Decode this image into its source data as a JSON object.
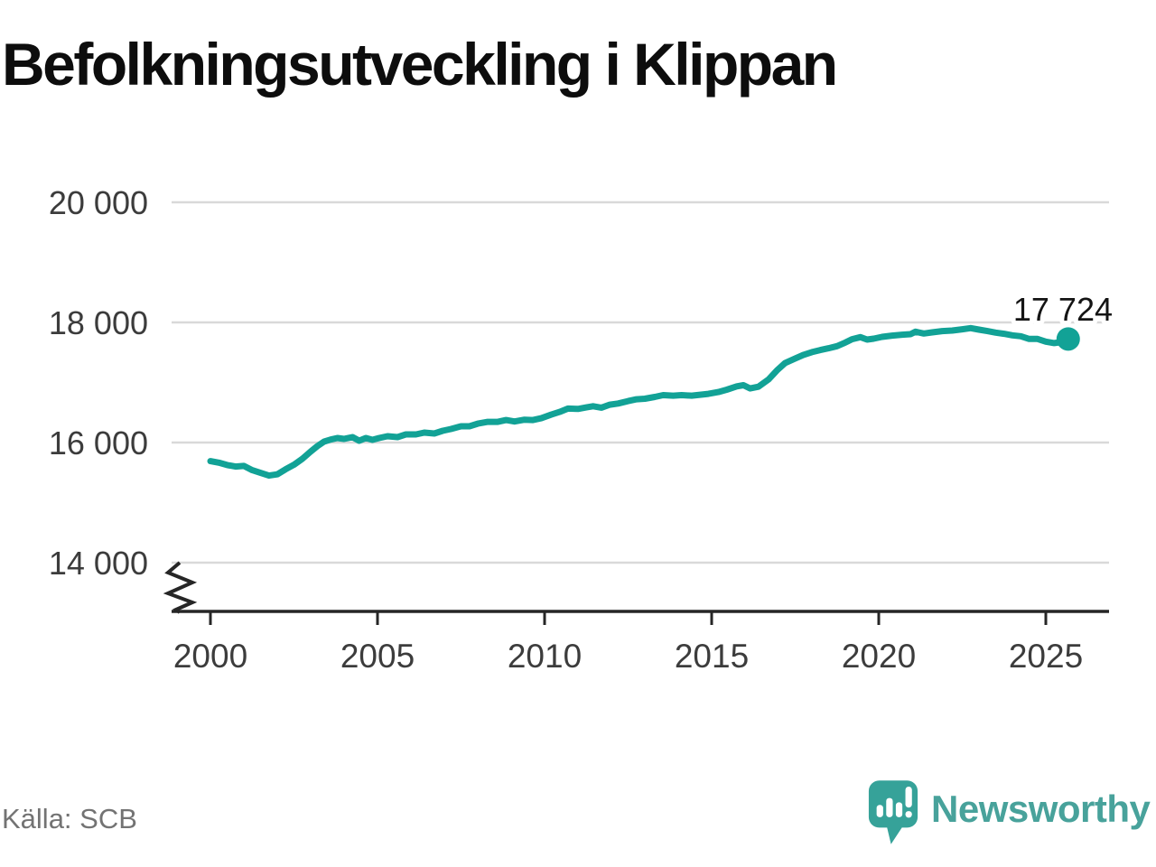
{
  "title": "Befolkningsutveckling i Klippan",
  "source_note": "Källa: SCB",
  "branding": {
    "name": "Newsworthy",
    "icon": "newsworthy-speech-bubble-bars-icon"
  },
  "colors": {
    "line": "#12a296",
    "grid": "#d9d9d9",
    "axis": "#262626",
    "tick_label": "#3c3c3c",
    "title": "#0d0d0d",
    "source": "#737373",
    "logo": "#48a29b",
    "end_label": "#141414",
    "background": "#ffffff"
  },
  "chart_data": {
    "type": "line",
    "title": "Befolkningsutveckling i Klippan",
    "xlabel": "",
    "ylabel": "",
    "grid": "horizontal",
    "axis_break": true,
    "xlim": [
      1998.85,
      2026.9
    ],
    "ylim": [
      14000,
      20000
    ],
    "x_ticks": [
      2000,
      2005,
      2010,
      2015,
      2020,
      2025
    ],
    "y_ticks": [
      {
        "value": 14000,
        "label": "14 000"
      },
      {
        "value": 16000,
        "label": "16 000"
      },
      {
        "value": 18000,
        "label": "18 000"
      },
      {
        "value": 20000,
        "label": "20 000"
      }
    ],
    "end_label": {
      "text": "17 724",
      "x": 2025.67,
      "y": 17724
    },
    "series": [
      {
        "name": "Befolkning i Klippan",
        "points": [
          [
            2000.0,
            15690
          ],
          [
            2000.25,
            15665
          ],
          [
            2000.5,
            15625
          ],
          [
            2000.75,
            15600
          ],
          [
            2001.0,
            15610
          ],
          [
            2001.25,
            15540
          ],
          [
            2001.5,
            15495
          ],
          [
            2001.75,
            15450
          ],
          [
            2002.0,
            15470
          ],
          [
            2002.25,
            15555
          ],
          [
            2002.5,
            15630
          ],
          [
            2002.75,
            15730
          ],
          [
            2003.0,
            15850
          ],
          [
            2003.2,
            15940
          ],
          [
            2003.4,
            16015
          ],
          [
            2003.6,
            16050
          ],
          [
            2003.8,
            16075
          ],
          [
            2004.0,
            16060
          ],
          [
            2004.25,
            16090
          ],
          [
            2004.45,
            16030
          ],
          [
            2004.65,
            16075
          ],
          [
            2004.85,
            16045
          ],
          [
            2005.05,
            16075
          ],
          [
            2005.3,
            16105
          ],
          [
            2005.6,
            16090
          ],
          [
            2005.85,
            16135
          ],
          [
            2006.15,
            16135
          ],
          [
            2006.4,
            16165
          ],
          [
            2006.7,
            16150
          ],
          [
            2006.95,
            16195
          ],
          [
            2007.2,
            16225
          ],
          [
            2007.5,
            16270
          ],
          [
            2007.75,
            16270
          ],
          [
            2008.0,
            16315
          ],
          [
            2008.3,
            16345
          ],
          [
            2008.6,
            16345
          ],
          [
            2008.85,
            16375
          ],
          [
            2009.1,
            16350
          ],
          [
            2009.4,
            16380
          ],
          [
            2009.65,
            16375
          ],
          [
            2009.9,
            16405
          ],
          [
            2010.2,
            16465
          ],
          [
            2010.45,
            16510
          ],
          [
            2010.7,
            16565
          ],
          [
            2011.0,
            16560
          ],
          [
            2011.25,
            16585
          ],
          [
            2011.45,
            16605
          ],
          [
            2011.7,
            16580
          ],
          [
            2011.95,
            16630
          ],
          [
            2012.2,
            16650
          ],
          [
            2012.5,
            16690
          ],
          [
            2012.75,
            16720
          ],
          [
            2013.0,
            16730
          ],
          [
            2013.3,
            16760
          ],
          [
            2013.55,
            16790
          ],
          [
            2013.85,
            16780
          ],
          [
            2014.1,
            16790
          ],
          [
            2014.4,
            16780
          ],
          [
            2014.65,
            16795
          ],
          [
            2014.9,
            16810
          ],
          [
            2015.2,
            16840
          ],
          [
            2015.45,
            16880
          ],
          [
            2015.75,
            16935
          ],
          [
            2015.95,
            16955
          ],
          [
            2016.15,
            16900
          ],
          [
            2016.4,
            16930
          ],
          [
            2016.7,
            17050
          ],
          [
            2016.95,
            17200
          ],
          [
            2017.2,
            17325
          ],
          [
            2017.5,
            17400
          ],
          [
            2017.75,
            17460
          ],
          [
            2018.0,
            17505
          ],
          [
            2018.25,
            17540
          ],
          [
            2018.5,
            17570
          ],
          [
            2018.75,
            17605
          ],
          [
            2019.0,
            17665
          ],
          [
            2019.2,
            17720
          ],
          [
            2019.45,
            17755
          ],
          [
            2019.65,
            17715
          ],
          [
            2019.85,
            17730
          ],
          [
            2020.1,
            17760
          ],
          [
            2020.4,
            17780
          ],
          [
            2020.7,
            17795
          ],
          [
            2020.95,
            17805
          ],
          [
            2021.1,
            17845
          ],
          [
            2021.35,
            17815
          ],
          [
            2021.6,
            17835
          ],
          [
            2021.9,
            17855
          ],
          [
            2022.2,
            17865
          ],
          [
            2022.5,
            17885
          ],
          [
            2022.75,
            17905
          ],
          [
            2023.0,
            17880
          ],
          [
            2023.25,
            17855
          ],
          [
            2023.5,
            17830
          ],
          [
            2023.75,
            17810
          ],
          [
            2024.0,
            17785
          ],
          [
            2024.25,
            17770
          ],
          [
            2024.5,
            17725
          ],
          [
            2024.75,
            17725
          ],
          [
            2025.0,
            17680
          ],
          [
            2025.25,
            17655
          ],
          [
            2025.45,
            17670
          ],
          [
            2025.67,
            17724
          ]
        ]
      }
    ]
  }
}
